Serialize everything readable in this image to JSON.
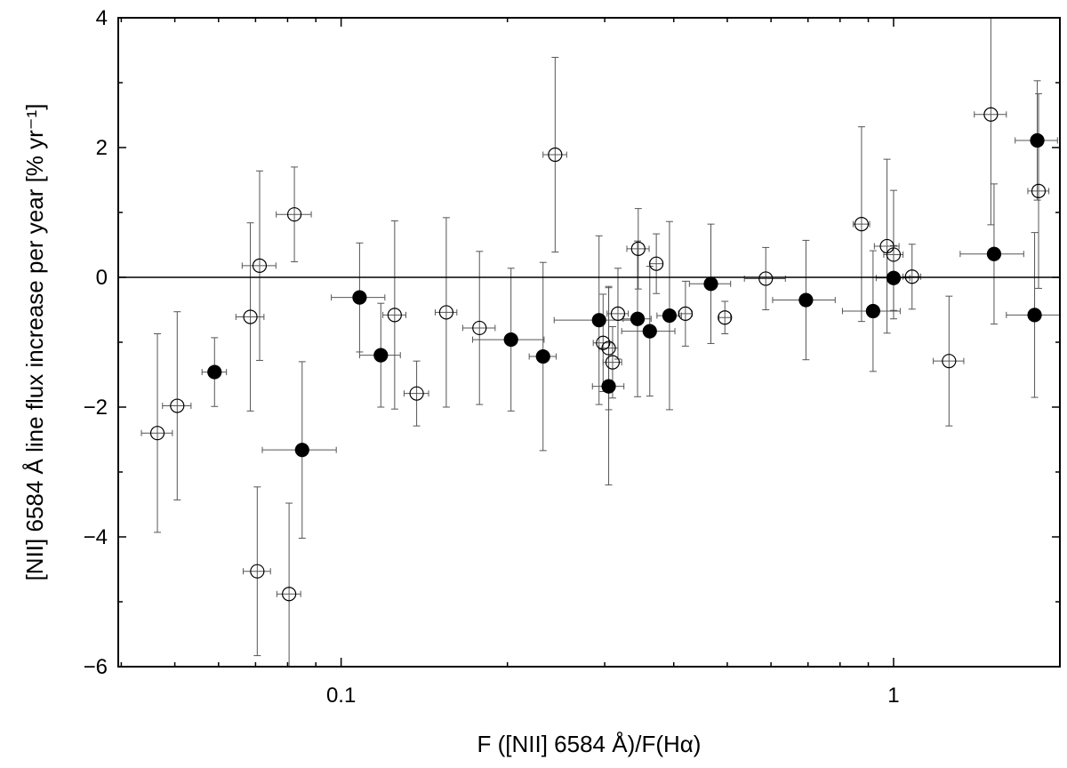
{
  "chart_data": {
    "type": "scatter",
    "title": "",
    "xlabel": "F ([NII] 6584 Å)/F(Hα)",
    "ylabel": "[NII] 6584 Å line flux increase per year [% yr⁻¹]",
    "xscale": "log",
    "xlim": [
      0.0395,
      2.0
    ],
    "ylim": [
      -6,
      4
    ],
    "x_ticks": [
      0.1,
      1
    ],
    "x_tick_labels": [
      "0.1",
      "1"
    ],
    "y_ticks": [
      -6,
      -4,
      -2,
      0,
      2,
      4
    ],
    "y_tick_labels": [
      "−6",
      "−4",
      "−2",
      "0",
      "2",
      "4"
    ],
    "reference_line_y": 0,
    "grid": false,
    "legend": "none",
    "colors": {
      "filled": "#000000",
      "open_fill": "#ffffff",
      "errorbar": "#555555",
      "frame": "#000000"
    },
    "series": [
      {
        "marker": "filled-circle",
        "points": [
          {
            "x": 0.059,
            "y": -1.46,
            "xerr": 0.003,
            "yerr": 0.53
          },
          {
            "x": 0.085,
            "y": -2.66,
            "xerr": 0.013,
            "yerr": 1.36
          },
          {
            "x": 0.108,
            "y": -0.31,
            "xerr": 0.012,
            "yerr": 0.84
          },
          {
            "x": 0.118,
            "y": -1.2,
            "xerr": 0.01,
            "yerr": 0.8
          },
          {
            "x": 0.203,
            "y": -0.96,
            "xerr": 0.03,
            "yerr": 1.1
          },
          {
            "x": 0.232,
            "y": -1.22,
            "xerr": 0.013,
            "yerr": 1.45
          },
          {
            "x": 0.293,
            "y": -0.66,
            "xerr": 0.05,
            "yerr": 1.3
          },
          {
            "x": 0.305,
            "y": -1.68,
            "xerr": 0.02,
            "yerr": 1.52
          },
          {
            "x": 0.344,
            "y": -0.64,
            "xerr": 0.02,
            "yerr": 1.2
          },
          {
            "x": 0.362,
            "y": -0.83,
            "xerr": 0.04,
            "yerr": 1.0
          },
          {
            "x": 0.393,
            "y": -0.59,
            "xerr": 0.02,
            "yerr": 1.45
          },
          {
            "x": 0.467,
            "y": -0.1,
            "xerr": 0.04,
            "yerr": 0.92
          },
          {
            "x": 0.694,
            "y": -0.35,
            "xerr": 0.09,
            "yerr": 0.92
          },
          {
            "x": 0.918,
            "y": -0.52,
            "xerr": 0.11,
            "yerr": 0.93
          },
          {
            "x": 1.0,
            "y": -0.01,
            "xerr": 0.07,
            "yerr": 0.5
          },
          {
            "x": 1.52,
            "y": 0.36,
            "xerr": 0.2,
            "yerr": 1.08
          },
          {
            "x": 1.8,
            "y": -0.58,
            "xerr": 0.2,
            "yerr": 1.27
          },
          {
            "x": 1.82,
            "y": 2.11,
            "xerr": 0.16,
            "yerr": 0.92
          }
        ]
      },
      {
        "marker": "open-circle",
        "points": [
          {
            "x": 0.0465,
            "y": -2.4,
            "xerr": 0.003,
            "yerr": 1.53
          },
          {
            "x": 0.0505,
            "y": -1.98,
            "xerr": 0.003,
            "yerr": 1.45
          },
          {
            "x": 0.0685,
            "y": -0.61,
            "xerr": 0.004,
            "yerr": 1.45
          },
          {
            "x": 0.0705,
            "y": -4.53,
            "xerr": 0.004,
            "yerr": 1.3
          },
          {
            "x": 0.0712,
            "y": 0.18,
            "xerr": 0.005,
            "yerr": 1.46
          },
          {
            "x": 0.0805,
            "y": -4.88,
            "xerr": 0.004,
            "yerr": 1.4
          },
          {
            "x": 0.0823,
            "y": 0.97,
            "xerr": 0.006,
            "yerr": 0.73
          },
          {
            "x": 0.125,
            "y": -0.58,
            "xerr": 0.006,
            "yerr": 1.45
          },
          {
            "x": 0.137,
            "y": -1.79,
            "xerr": 0.007,
            "yerr": 0.5
          },
          {
            "x": 0.155,
            "y": -0.54,
            "xerr": 0.007,
            "yerr": 1.46
          },
          {
            "x": 0.178,
            "y": -0.78,
            "xerr": 0.012,
            "yerr": 1.18
          },
          {
            "x": 0.244,
            "y": 1.89,
            "xerr": 0.012,
            "yerr": 1.5
          },
          {
            "x": 0.298,
            "y": -1.01,
            "xerr": 0.012,
            "yerr": 0.75
          },
          {
            "x": 0.305,
            "y": -1.09,
            "xerr": 0.012,
            "yerr": 0.95
          },
          {
            "x": 0.31,
            "y": -1.31,
            "xerr": 0.012,
            "yerr": 0.55
          },
          {
            "x": 0.317,
            "y": -0.56,
            "xerr": 0.014,
            "yerr": 0.7
          },
          {
            "x": 0.345,
            "y": 0.44,
            "xerr": 0.016,
            "yerr": 0.62
          },
          {
            "x": 0.372,
            "y": 0.21,
            "xerr": 0.01,
            "yerr": 0.46
          },
          {
            "x": 0.42,
            "y": -0.56,
            "xerr": 0.012,
            "yerr": 0.5
          },
          {
            "x": 0.495,
            "y": -0.62,
            "xerr": 0.012,
            "yerr": 0.25
          },
          {
            "x": 0.587,
            "y": -0.02,
            "xerr": 0.05,
            "yerr": 0.48
          },
          {
            "x": 0.875,
            "y": 0.82,
            "xerr": 0.03,
            "yerr": 1.5
          },
          {
            "x": 0.973,
            "y": 0.48,
            "xerr": 0.05,
            "yerr": 1.34
          },
          {
            "x": 1.0,
            "y": 0.35,
            "xerr": 0.04,
            "yerr": 0.99
          },
          {
            "x": 1.08,
            "y": 0.01,
            "xerr": 0.04,
            "yerr": 0.5
          },
          {
            "x": 1.26,
            "y": -1.29,
            "xerr": 0.08,
            "yerr": 1.0
          },
          {
            "x": 1.5,
            "y": 2.51,
            "xerr": 0.1,
            "yerr": 1.7
          },
          {
            "x": 1.83,
            "y": 1.33,
            "xerr": 0.08,
            "yerr": 1.5
          }
        ]
      }
    ]
  }
}
